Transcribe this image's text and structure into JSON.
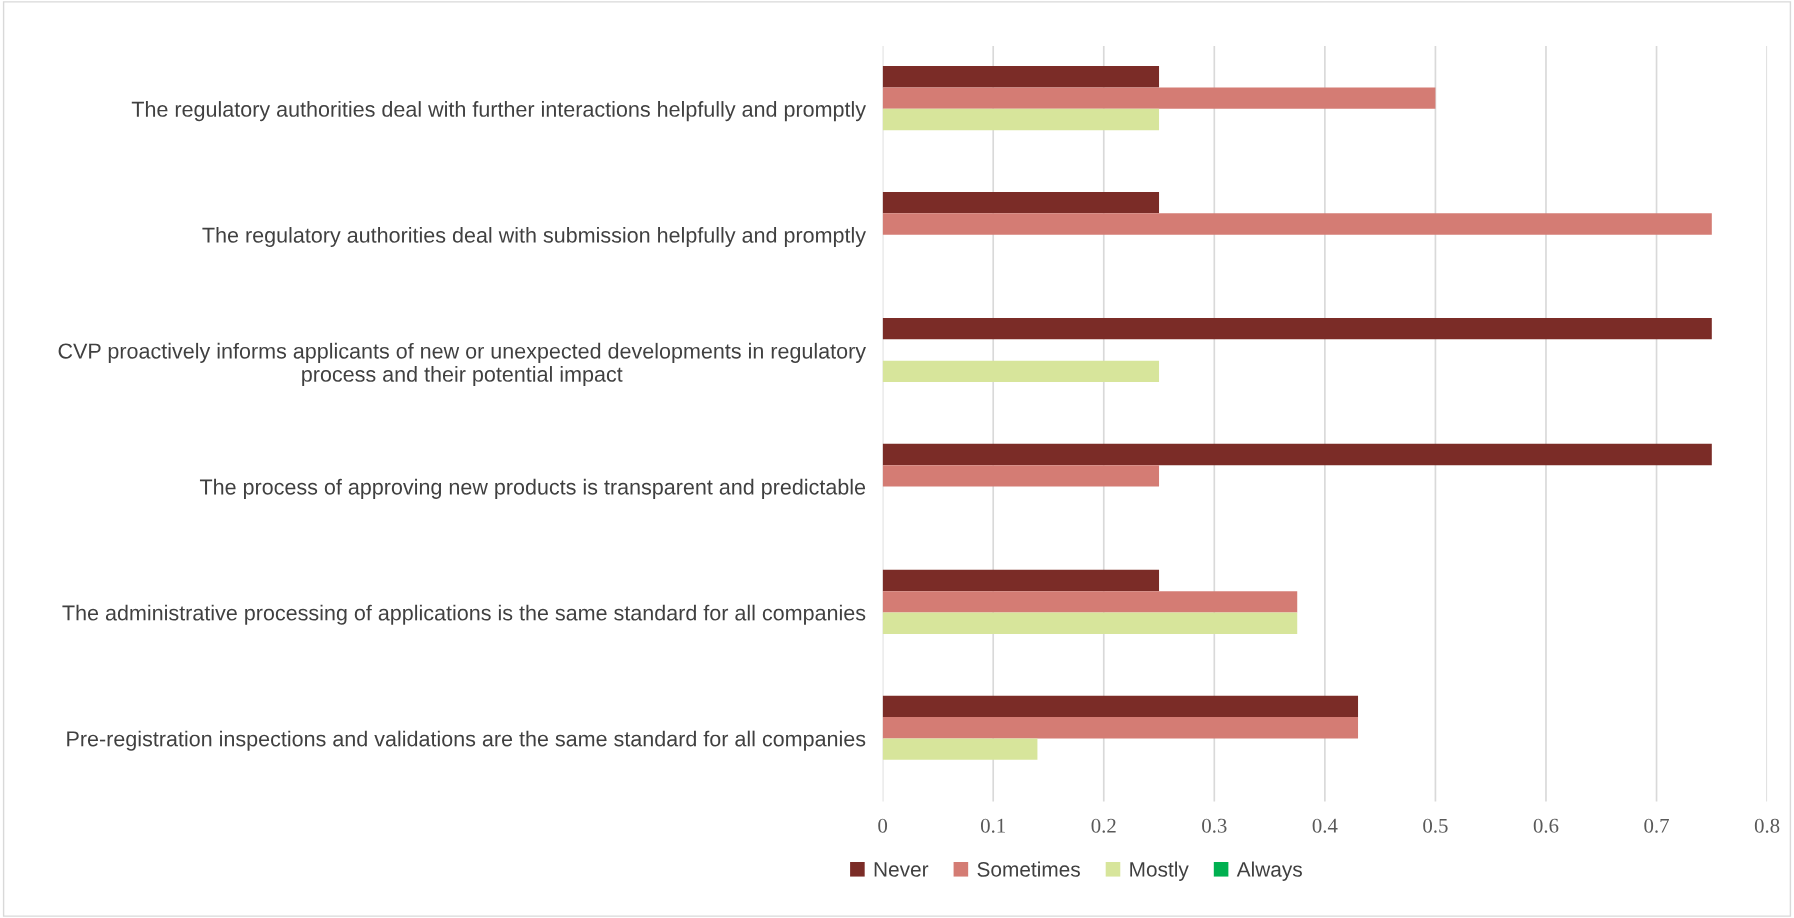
{
  "chart_data": {
    "type": "bar",
    "orientation": "horizontal",
    "categories": [
      "The regulatory authorities deal with further interactions helpfully and promptly",
      "The regulatory authorities deal with submission helpfully and promptly",
      "CVP proactively informs applicants of new or unexpected developments in regulatory\nprocess and their potential impact",
      "The process of approving new products is transparent and predictable",
      "The administrative processing of applications is the same standard for all companies",
      "Pre-registration inspections and validations are the same standard for all companies"
    ],
    "series": [
      {
        "name": "Never",
        "color": "#7b2c27",
        "values": [
          0.25,
          0.25,
          0.75,
          0.75,
          0.25,
          0.43
        ]
      },
      {
        "name": "Sometimes",
        "color": "#d47c74",
        "values": [
          0.5,
          0.75,
          0,
          0.25,
          0.375,
          0.43
        ]
      },
      {
        "name": "Mostly",
        "color": "#d7e59b",
        "values": [
          0.25,
          0,
          0.25,
          0,
          0.375,
          0.14
        ]
      },
      {
        "name": "Always",
        "color": "#00b050",
        "values": [
          0,
          0,
          0,
          0,
          0,
          0
        ]
      }
    ],
    "xlim": [
      0,
      0.8
    ],
    "xticks": [
      0,
      0.1,
      0.2,
      0.3,
      0.4,
      0.5,
      0.6,
      0.7,
      0.8
    ],
    "grid": "x",
    "legend": "bottom"
  }
}
